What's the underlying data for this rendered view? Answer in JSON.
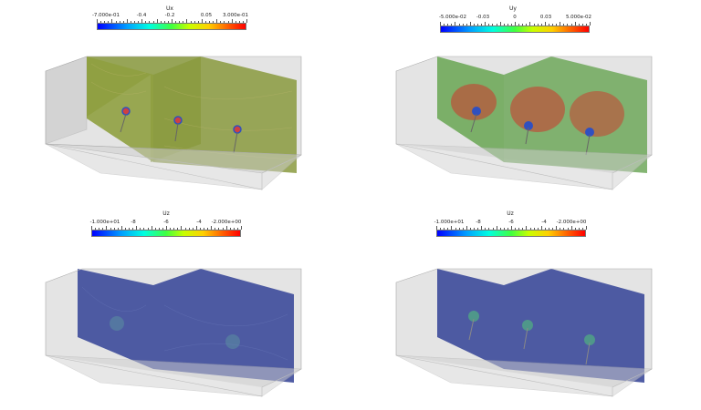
{
  "panels": [
    {
      "id": "ux",
      "field": "Ux",
      "labels": [
        "-7.000e-01",
        "-0.4",
        "-0.2",
        "0.05",
        "3.000e-01"
      ],
      "plane_color": "#8a9a3e",
      "plane_highlight": "#b8b860"
    },
    {
      "id": "uy",
      "field": "Uy",
      "labels": [
        "-5.000e-02",
        "-0.03",
        "0",
        "0.03",
        "5.000e-02"
      ],
      "plane_color": "#6fa85a",
      "plane_highlight": "#c84030"
    },
    {
      "id": "uz-a",
      "field": "Uz",
      "labels": [
        "-1.000e+01",
        "-8",
        "-6",
        "-4",
        "-2.000e+00"
      ],
      "plane_color": "#3c4a9a",
      "plane_highlight": "#5a8aa0"
    },
    {
      "id": "uz-b",
      "field": "Uz",
      "labels": [
        "-1.000e+01",
        "-8",
        "-6",
        "-4",
        "-2.000e+00"
      ],
      "plane_color": "#3c4a9a",
      "plane_highlight": "#50b080"
    }
  ],
  "box_color": "#cfcfcf",
  "box_edge": "#a8a8a8"
}
